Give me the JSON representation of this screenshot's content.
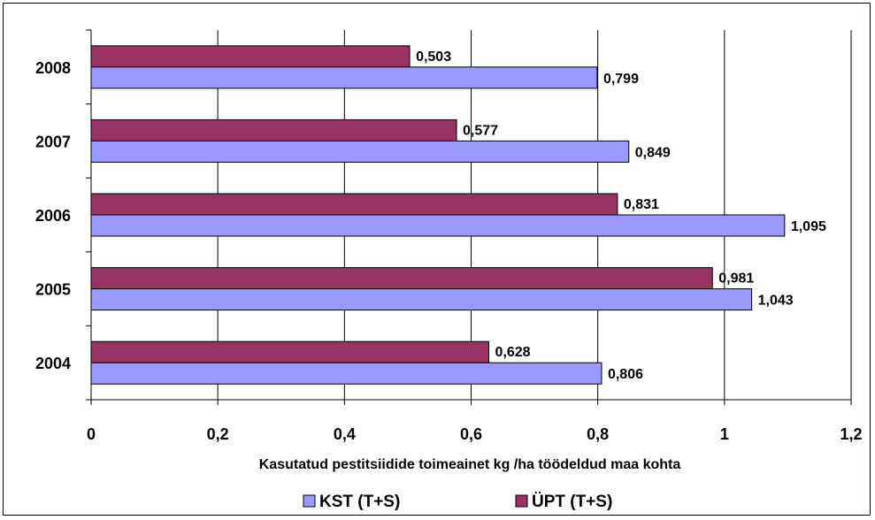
{
  "chart_data": {
    "type": "bar",
    "orientation": "horizontal",
    "categories": [
      "2004",
      "2005",
      "2006",
      "2007",
      "2008"
    ],
    "series": [
      {
        "name": "KST (T+S)",
        "values": [
          0.806,
          1.043,
          1.095,
          0.849,
          0.799
        ],
        "color": "#9999ff",
        "labels": [
          "0,806",
          "1,043",
          "1,095",
          "0,849",
          "0,799"
        ]
      },
      {
        "name": "ÜPT (T+S)",
        "values": [
          0.628,
          0.981,
          0.831,
          0.577,
          0.503
        ],
        "color": "#993366",
        "labels": [
          "0,628",
          "0,981",
          "0,831",
          "0,577",
          "0,503"
        ]
      }
    ],
    "xlim": [
      0,
      1.2
    ],
    "xticks": [
      0,
      0.2,
      0.4,
      0.6,
      0.8,
      1,
      1.2
    ],
    "xtick_labels": [
      "0",
      "0,2",
      "0,4",
      "0,6",
      "0,8",
      "1",
      "1,2"
    ],
    "xlabel": "Kasutatud pestitsiidide toimeainet kg /ha töödeldud maa kohta",
    "ylabel": "",
    "title": "",
    "grid": "vertical",
    "legend_position": "bottom"
  }
}
